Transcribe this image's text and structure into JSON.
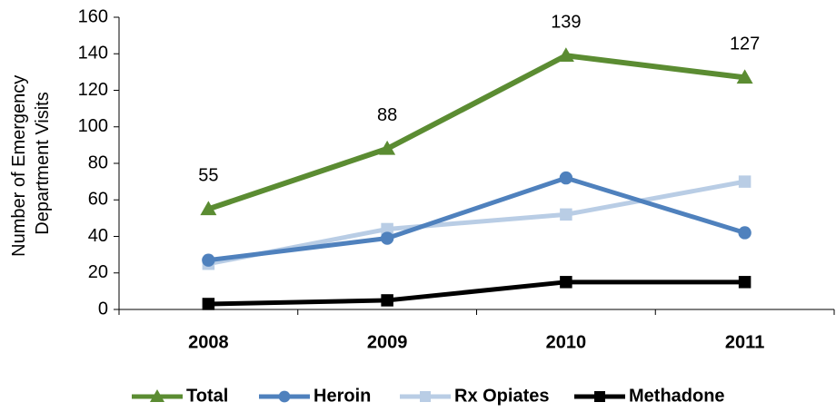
{
  "chart_data": {
    "type": "line",
    "ylabel": [
      "Number of Emergency",
      "Department Visits"
    ],
    "categories": [
      "2008",
      "2009",
      "2010",
      "2011"
    ],
    "series": [
      {
        "name": "Total",
        "color": "#5b8c32",
        "marker": "triangle",
        "values": [
          55,
          88,
          139,
          127
        ],
        "data_labels": true
      },
      {
        "name": "Heroin",
        "color": "#4f81bd",
        "marker": "circle",
        "values": [
          27,
          39,
          72,
          42
        ]
      },
      {
        "name": "Rx Opiates",
        "color": "#b9cde5",
        "marker": "square",
        "values": [
          25,
          44,
          52,
          70
        ]
      },
      {
        "name": "Methadone",
        "color": "#000000",
        "marker": "square",
        "values": [
          3,
          5,
          15,
          15
        ]
      }
    ],
    "ylim": [
      0,
      160
    ],
    "yticks": [
      0,
      20,
      40,
      60,
      80,
      100,
      120,
      140,
      160
    ],
    "grid": false,
    "legend": "bottom"
  }
}
